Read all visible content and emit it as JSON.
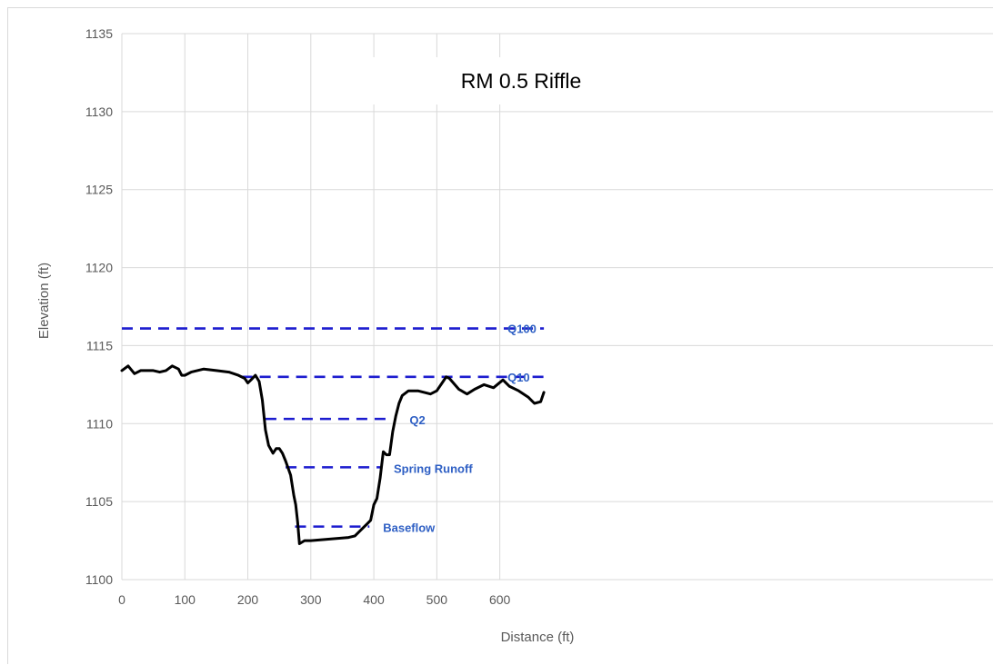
{
  "chart_data": {
    "type": "line",
    "title": "RM 0.5 Riffle",
    "xlabel": "Distance (ft)",
    "ylabel": "Elevation (ft)",
    "xlim": [
      0,
      670
    ],
    "ylim": [
      1100,
      1135
    ],
    "x_ticks": [
      "0",
      "100",
      "200",
      "300",
      "400",
      "500",
      "600"
    ],
    "y_ticks": [
      "1100",
      "1105",
      "1110",
      "1115",
      "1120",
      "1125",
      "1130",
      "1135"
    ],
    "grid": true,
    "series": [
      {
        "color": "#000000",
        "points": [
          [
            0,
            1113.4
          ],
          [
            10,
            1113.7
          ],
          [
            20,
            1113.2
          ],
          [
            30,
            1113.4
          ],
          [
            50,
            1113.4
          ],
          [
            60,
            1113.3
          ],
          [
            70,
            1113.4
          ],
          [
            80,
            1113.7
          ],
          [
            90,
            1113.5
          ],
          [
            95,
            1113.1
          ],
          [
            100,
            1113.1
          ],
          [
            110,
            1113.3
          ],
          [
            130,
            1113.5
          ],
          [
            150,
            1113.4
          ],
          [
            170,
            1113.3
          ],
          [
            185,
            1113.1
          ],
          [
            195,
            1112.9
          ],
          [
            200,
            1112.6
          ],
          [
            205,
            1112.8
          ],
          [
            212,
            1113.1
          ],
          [
            218,
            1112.7
          ],
          [
            223,
            1111.5
          ],
          [
            228,
            1109.6
          ],
          [
            233,
            1108.6
          ],
          [
            240,
            1108.1
          ],
          [
            245,
            1108.4
          ],
          [
            250,
            1108.4
          ],
          [
            255,
            1108.1
          ],
          [
            260,
            1107.6
          ],
          [
            268,
            1106.7
          ],
          [
            273,
            1105.4
          ],
          [
            276,
            1104.8
          ],
          [
            279,
            1103.7
          ],
          [
            282,
            1102.3
          ],
          [
            290,
            1102.5
          ],
          [
            300,
            1102.5
          ],
          [
            330,
            1102.6
          ],
          [
            360,
            1102.7
          ],
          [
            370,
            1102.8
          ],
          [
            380,
            1103.2
          ],
          [
            390,
            1103.6
          ],
          [
            395,
            1103.8
          ],
          [
            400,
            1104.8
          ],
          [
            405,
            1105.2
          ],
          [
            410,
            1106.5
          ],
          [
            415,
            1108.2
          ],
          [
            420,
            1108.0
          ],
          [
            425,
            1108.0
          ],
          [
            430,
            1109.5
          ],
          [
            435,
            1110.5
          ],
          [
            440,
            1111.3
          ],
          [
            445,
            1111.8
          ],
          [
            455,
            1112.1
          ],
          [
            470,
            1112.1
          ],
          [
            490,
            1111.9
          ],
          [
            500,
            1112.1
          ],
          [
            510,
            1112.7
          ],
          [
            515,
            1113.0
          ],
          [
            520,
            1112.9
          ],
          [
            535,
            1112.2
          ],
          [
            548,
            1111.9
          ],
          [
            560,
            1112.2
          ],
          [
            575,
            1112.5
          ],
          [
            590,
            1112.3
          ],
          [
            605,
            1112.8
          ],
          [
            615,
            1112.4
          ],
          [
            630,
            1112.1
          ],
          [
            645,
            1111.7
          ],
          [
            655,
            1111.3
          ],
          [
            665,
            1111.4
          ],
          [
            670,
            1112.0
          ]
        ]
      }
    ],
    "levels": [
      {
        "label": "Q100",
        "y": 1116.1,
        "x_start": 0,
        "x_end": 670
      },
      {
        "label": "Q10",
        "y": 1113.0,
        "x_start": 190,
        "x_end": 670
      },
      {
        "label": "Q2",
        "y": 1110.3,
        "x_start": 228,
        "x_end": 425
      },
      {
        "label": "Spring Runoff",
        "y": 1107.2,
        "x_start": 260,
        "x_end": 410
      },
      {
        "label": "Baseflow",
        "y": 1103.4,
        "x_start": 275,
        "x_end": 393
      }
    ],
    "level_color": "#1c1ccf"
  }
}
